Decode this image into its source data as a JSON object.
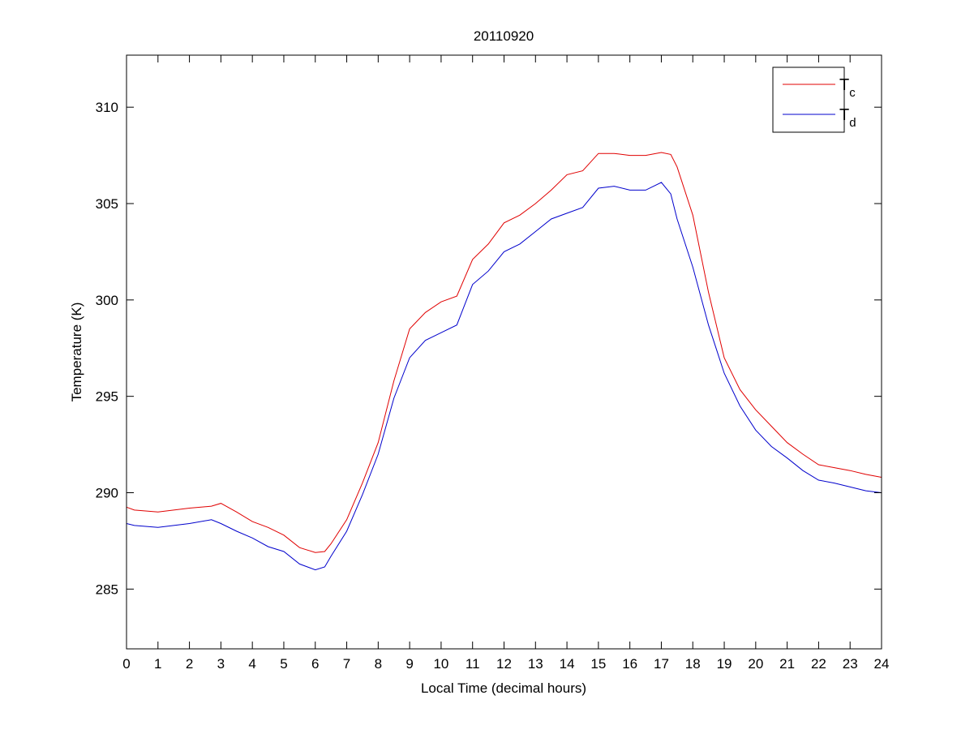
{
  "chart_data": {
    "type": "line",
    "title": "20110920",
    "xlabel": "Local Time (decimal hours)",
    "ylabel": "Temperature (K)",
    "xlim": [
      0,
      24
    ],
    "ylim": [
      281.9,
      312.7
    ],
    "xticks": [
      0,
      1,
      2,
      3,
      4,
      5,
      6,
      7,
      8,
      9,
      10,
      11,
      12,
      13,
      14,
      15,
      16,
      17,
      18,
      19,
      20,
      21,
      22,
      23,
      24
    ],
    "yticks": [
      285,
      290,
      295,
      300,
      305,
      310
    ],
    "grid": false,
    "legend_position": "top-right",
    "x": [
      0,
      0.25,
      1,
      2,
      2.7,
      3,
      3.5,
      4,
      4.5,
      5,
      5.5,
      6,
      6.3,
      6.5,
      7,
      7.5,
      8,
      8.5,
      9,
      9.5,
      10,
      10.5,
      11,
      11.5,
      12,
      12.5,
      13,
      13.5,
      14,
      14.5,
      15,
      15.5,
      16,
      16.5,
      17,
      17.3,
      17.5,
      18,
      18.5,
      19,
      19.5,
      20,
      20.5,
      21,
      21.5,
      22,
      22.5,
      23,
      23.5,
      24
    ],
    "series": [
      {
        "name": "T",
        "subscript": "c",
        "color": "#e00000",
        "values": [
          289.25,
          289.1,
          289.0,
          289.2,
          289.3,
          289.45,
          289.0,
          288.5,
          288.2,
          287.8,
          287.15,
          286.9,
          286.95,
          287.35,
          288.6,
          290.5,
          292.6,
          295.8,
          298.5,
          299.35,
          299.9,
          300.2,
          302.1,
          302.9,
          304.0,
          304.4,
          305.0,
          305.7,
          306.5,
          306.7,
          307.6,
          307.6,
          307.5,
          307.5,
          307.65,
          307.55,
          306.9,
          304.4,
          300.4,
          297.0,
          295.35,
          294.3,
          293.45,
          292.6,
          292.0,
          291.45,
          291.3,
          291.15,
          290.95,
          290.8
        ]
      },
      {
        "name": "T",
        "subscript": "d",
        "color": "#0000cc",
        "values": [
          288.4,
          288.3,
          288.2,
          288.4,
          288.6,
          288.4,
          288.0,
          287.65,
          287.2,
          286.95,
          286.3,
          286.0,
          286.15,
          286.7,
          288.0,
          289.9,
          292.0,
          294.9,
          297.0,
          297.9,
          298.3,
          298.7,
          300.8,
          301.5,
          302.5,
          302.9,
          303.55,
          304.2,
          304.5,
          304.8,
          305.8,
          305.9,
          305.7,
          305.7,
          306.1,
          305.5,
          304.2,
          301.7,
          298.7,
          296.2,
          294.5,
          293.25,
          292.4,
          291.8,
          291.15,
          290.65,
          290.5,
          290.3,
          290.1,
          290.0
        ]
      }
    ]
  }
}
